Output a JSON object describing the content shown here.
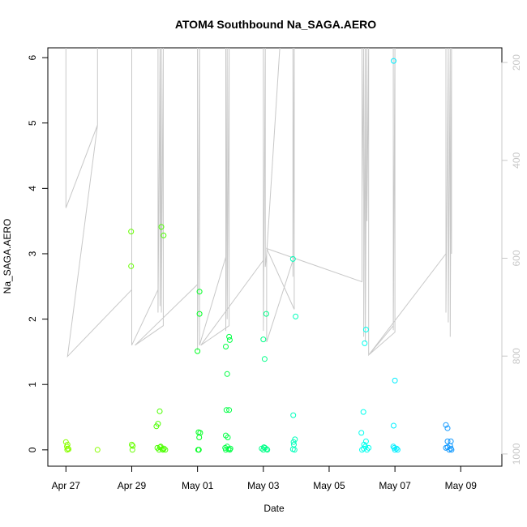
{
  "chart_data": {
    "type": "scatter",
    "title": "ATOM4 Southbound Na_SAGA.AERO",
    "xlabel": "Date",
    "ylabel": "Na_SAGA.AERO",
    "x_ticks": [
      "Apr 27",
      "Apr 29",
      "May 01",
      "May 03",
      "May 05",
      "May 07",
      "May 09"
    ],
    "x_tick_days": [
      0,
      2,
      4,
      6,
      8,
      10,
      12
    ],
    "xlim_days": [
      -0.55,
      13.25
    ],
    "ylim": [
      -0.25,
      6.15
    ],
    "y_ticks": [
      0,
      1,
      2,
      3,
      4,
      5,
      6
    ],
    "right_axis_ticks": [
      200,
      400,
      600,
      800,
      1000
    ],
    "right_axis_range": [
      1025,
      170
    ],
    "grid": false,
    "legend": "none",
    "colors": {
      "line": "#c8c8c8",
      "axis": "#000000",
      "right_axis": "#c8c8c8"
    },
    "points": [
      [
        0.0,
        0.12,
        "#8aff00"
      ],
      [
        0.03,
        0.05,
        "#8aff00"
      ],
      [
        0.05,
        0.08,
        "#8aff00"
      ],
      [
        0.06,
        0.02,
        "#8aff00"
      ],
      [
        0.04,
        0.0,
        "#8aff00"
      ],
      [
        0.08,
        0.01,
        "#8aff00"
      ],
      [
        0.96,
        0.0,
        "#8aff00"
      ],
      [
        1.98,
        3.34,
        "#66ff00"
      ],
      [
        1.98,
        2.81,
        "#66ff00"
      ],
      [
        2.0,
        0.08,
        "#66ff00"
      ],
      [
        2.03,
        0.06,
        "#66ff00"
      ],
      [
        2.02,
        0.0,
        "#66ff00"
      ],
      [
        2.75,
        0.36,
        "#4cff00"
      ],
      [
        2.8,
        0.4,
        "#4cff00"
      ],
      [
        2.85,
        0.59,
        "#4cff00"
      ],
      [
        2.9,
        3.41,
        "#4cff00"
      ],
      [
        2.97,
        3.28,
        "#4cff00"
      ],
      [
        2.78,
        0.03,
        "#4cff00"
      ],
      [
        2.83,
        0.0,
        "#4cff00"
      ],
      [
        2.88,
        0.05,
        "#4cff00"
      ],
      [
        2.93,
        0.01,
        "#4cff00"
      ],
      [
        2.98,
        0.02,
        "#4cff00"
      ],
      [
        3.02,
        0.0,
        "#4cff00"
      ],
      [
        2.86,
        0.04,
        "#4cff00"
      ],
      [
        2.95,
        0.0,
        "#4cff00"
      ],
      [
        4.0,
        1.51,
        "#00ff22"
      ],
      [
        4.06,
        2.42,
        "#00ff22"
      ],
      [
        4.06,
        2.08,
        "#00ff22"
      ],
      [
        4.03,
        0.27,
        "#00ff22"
      ],
      [
        4.08,
        0.26,
        "#00ff22"
      ],
      [
        4.05,
        0.19,
        "#00ff22"
      ],
      [
        4.02,
        0.0,
        "#00ff22"
      ],
      [
        4.04,
        0.0,
        "#00ff22"
      ],
      [
        4.86,
        1.58,
        "#00ff44"
      ],
      [
        4.9,
        1.16,
        "#00ff44"
      ],
      [
        4.96,
        1.73,
        "#00ff44"
      ],
      [
        4.98,
        1.68,
        "#00ff44"
      ],
      [
        4.88,
        0.61,
        "#00ff44"
      ],
      [
        4.96,
        0.61,
        "#00ff44"
      ],
      [
        4.86,
        0.22,
        "#00ff44"
      ],
      [
        4.92,
        0.19,
        "#00ff44"
      ],
      [
        4.9,
        0.05,
        "#00ff44"
      ],
      [
        4.94,
        0.01,
        "#00ff44"
      ],
      [
        4.98,
        0.0,
        "#00ff44"
      ],
      [
        4.86,
        0.0,
        "#00ff44"
      ],
      [
        5.0,
        0.02,
        "#00ff44"
      ],
      [
        4.84,
        0.03,
        "#00ff44"
      ],
      [
        6.0,
        1.69,
        "#00ff88"
      ],
      [
        6.04,
        1.39,
        "#00ff88"
      ],
      [
        6.09,
        2.08,
        "#00ff88"
      ],
      [
        5.95,
        0.02,
        "#00ff88"
      ],
      [
        6.0,
        0.0,
        "#00ff88"
      ],
      [
        6.05,
        0.03,
        "#00ff88"
      ],
      [
        6.1,
        0.01,
        "#00ff88"
      ],
      [
        6.12,
        0.0,
        "#00ff88"
      ],
      [
        6.02,
        0.04,
        "#00ff88"
      ],
      [
        6.9,
        2.92,
        "#00ffbb"
      ],
      [
        6.98,
        2.04,
        "#00ffbb"
      ],
      [
        6.91,
        0.53,
        "#00ffbb"
      ],
      [
        6.96,
        0.16,
        "#00ffbb"
      ],
      [
        6.93,
        0.08,
        "#00ffbb"
      ],
      [
        6.9,
        0.01,
        "#00ffbb"
      ],
      [
        6.95,
        0.0,
        "#00ffbb"
      ],
      [
        6.92,
        0.12,
        "#00ffbb"
      ],
      [
        8.98,
        0.26,
        "#00ffee"
      ],
      [
        9.04,
        0.58,
        "#00ffee"
      ],
      [
        9.08,
        1.63,
        "#00ffee"
      ],
      [
        9.12,
        1.84,
        "#00ffee"
      ],
      [
        9.12,
        0.13,
        "#00ffee"
      ],
      [
        9.0,
        0.0,
        "#00ffee"
      ],
      [
        9.05,
        0.02,
        "#00ffee"
      ],
      [
        9.1,
        0.05,
        "#00ffee"
      ],
      [
        9.15,
        0.0,
        "#00ffee"
      ],
      [
        9.2,
        0.03,
        "#00ffee"
      ],
      [
        9.06,
        0.08,
        "#00ffee"
      ],
      [
        9.96,
        5.95,
        "#00eeff"
      ],
      [
        10.0,
        1.06,
        "#00eeff"
      ],
      [
        9.96,
        0.37,
        "#00eeff"
      ],
      [
        9.95,
        0.05,
        "#00eeff"
      ],
      [
        10.0,
        0.0,
        "#00eeff"
      ],
      [
        10.05,
        0.02,
        "#00eeff"
      ],
      [
        10.08,
        0.0,
        "#00eeff"
      ],
      [
        9.98,
        0.03,
        "#00eeff"
      ],
      [
        11.55,
        0.38,
        "#1199ff"
      ],
      [
        11.6,
        0.33,
        "#1199ff"
      ],
      [
        11.6,
        0.13,
        "#1199ff"
      ],
      [
        11.7,
        0.13,
        "#1199ff"
      ],
      [
        11.6,
        0.04,
        "#1199ff"
      ],
      [
        11.65,
        0.0,
        "#1199ff"
      ],
      [
        11.7,
        0.02,
        "#1199ff"
      ],
      [
        11.55,
        0.03,
        "#1199ff"
      ],
      [
        11.68,
        0.06,
        "#1199ff"
      ],
      [
        11.72,
        0.0,
        "#1199ff"
      ]
    ],
    "track": [
      [
        0,
        6.2
      ],
      [
        0,
        3.7
      ],
      [
        0.96,
        4.97
      ],
      [
        0.96,
        6.2
      ],
      [
        0.96,
        4.97
      ],
      [
        0.05,
        1.43
      ],
      [
        2.0,
        2.45
      ],
      [
        2.0,
        6.2
      ],
      [
        2.0,
        1.6
      ],
      [
        2.8,
        2.45
      ],
      [
        2.8,
        6.2
      ],
      [
        2.8,
        2.1
      ],
      [
        2.86,
        6.2
      ],
      [
        2.86,
        2.2
      ],
      [
        2.9,
        6.2
      ],
      [
        2.9,
        2.1
      ],
      [
        2.96,
        6.2
      ],
      [
        2.96,
        1.9
      ],
      [
        2.1,
        1.6
      ],
      [
        4.0,
        2.53
      ],
      [
        4.0,
        6.2
      ],
      [
        4.0,
        1.52
      ],
      [
        4.06,
        6.2
      ],
      [
        4.06,
        1.6
      ],
      [
        4.86,
        2.95
      ],
      [
        4.86,
        6.2
      ],
      [
        4.86,
        1.82
      ],
      [
        4.9,
        6.2
      ],
      [
        4.9,
        2.0
      ],
      [
        4.96,
        6.2
      ],
      [
        4.96,
        1.9
      ],
      [
        4.1,
        1.6
      ],
      [
        6.0,
        2.9
      ],
      [
        6.0,
        6.2
      ],
      [
        6.0,
        1.82
      ],
      [
        6.06,
        6.2
      ],
      [
        6.06,
        2.8
      ],
      [
        6.1,
        3.0
      ],
      [
        6.5,
        6.2
      ],
      [
        6.1,
        3.0
      ],
      [
        6.1,
        1.65
      ],
      [
        6.9,
        2.9
      ],
      [
        6.9,
        6.2
      ],
      [
        6.9,
        2.65
      ],
      [
        6.94,
        6.2
      ],
      [
        6.94,
        2.15
      ],
      [
        6.1,
        3.08
      ],
      [
        9.0,
        2.57
      ],
      [
        9.0,
        6.2
      ],
      [
        9.0,
        3.8
      ],
      [
        9.05,
        6.2
      ],
      [
        9.05,
        1.73
      ],
      [
        9.1,
        6.2
      ],
      [
        9.1,
        1.65
      ],
      [
        9.15,
        6.2
      ],
      [
        9.15,
        3.5
      ],
      [
        9.2,
        6.2
      ],
      [
        9.2,
        1.45
      ],
      [
        9.95,
        1.9
      ],
      [
        9.95,
        6.2
      ],
      [
        9.95,
        1.83
      ],
      [
        10.0,
        6.2
      ],
      [
        10.0,
        1.8
      ],
      [
        9.2,
        1.45
      ],
      [
        11.55,
        3.0
      ],
      [
        11.55,
        6.2
      ],
      [
        11.55,
        2.1
      ],
      [
        11.62,
        6.2
      ],
      [
        11.62,
        1.95
      ],
      [
        11.68,
        6.2
      ],
      [
        11.68,
        1.73
      ],
      [
        11.72,
        6.2
      ],
      [
        11.72,
        3.0
      ]
    ]
  }
}
